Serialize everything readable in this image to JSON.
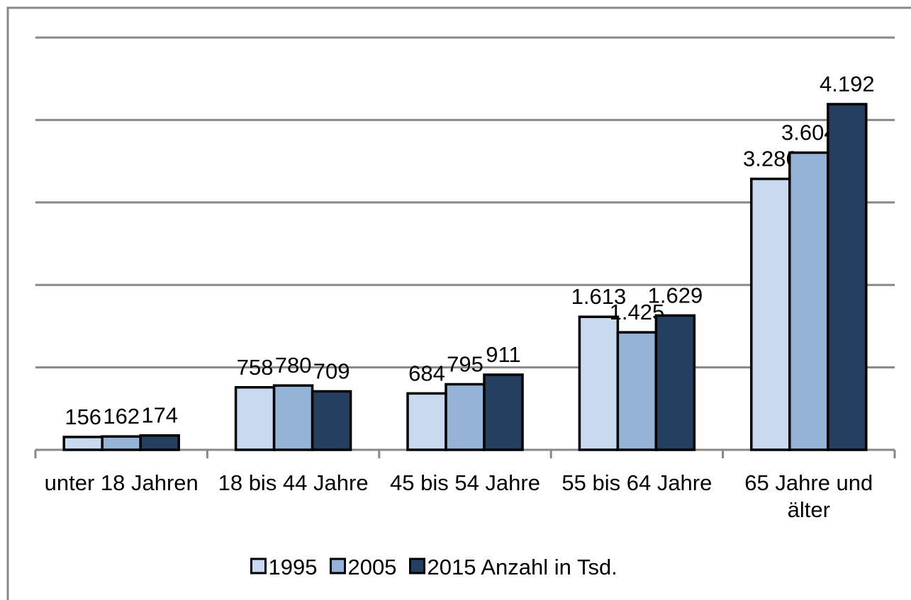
{
  "chart_data": {
    "type": "bar",
    "categories": [
      "unter 18 Jahren",
      "18 bis 44 Jahre",
      "45 bis 54 Jahre",
      "55 bis 64 Jahre",
      "65 Jahre und älter"
    ],
    "series": [
      {
        "name": "1995",
        "color": "#c9daf0",
        "values": [
          156,
          758,
          684,
          1613,
          3286
        ],
        "value_labels": [
          "156",
          "758",
          "684",
          "1.613",
          "3.286"
        ]
      },
      {
        "name": "2005",
        "color": "#95b3d7",
        "values": [
          162,
          780,
          795,
          1425,
          3604
        ],
        "value_labels": [
          "162",
          "780",
          "795",
          "1.425",
          "3.604"
        ]
      },
      {
        "name": "2015 Anzahl in Tsd.",
        "color": "#243f60",
        "values": [
          174,
          709,
          911,
          1629,
          4192
        ],
        "value_labels": [
          "174",
          "709",
          "911",
          "1.629",
          "4.192"
        ]
      }
    ],
    "ylim": [
      0,
      5000
    ],
    "yticks": [
      0,
      1000,
      2000,
      3000,
      4000,
      5000
    ],
    "grid": true
  }
}
